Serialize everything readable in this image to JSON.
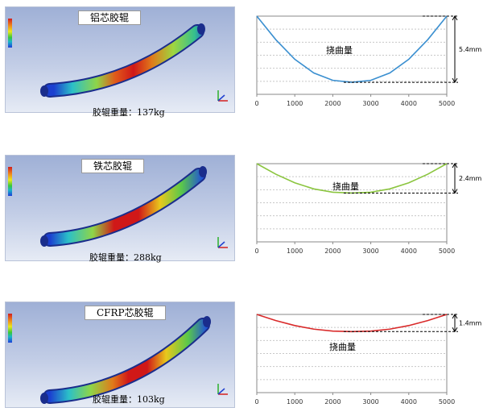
{
  "panels": [
    {
      "material_title": "铝芯胶辊",
      "weight_label": "胶辊重量：137kg"
    },
    {
      "material_title": "铁芯胶辊",
      "weight_label": "胶辊重量：288kg"
    },
    {
      "material_title": "CFRP芯胶辊",
      "weight_label": "胶辊重量：103kg"
    }
  ],
  "chart_data": [
    {
      "type": "line",
      "title": "",
      "x": [
        0,
        500,
        1000,
        1500,
        2000,
        2500,
        3000,
        3500,
        4000,
        4500,
        5000
      ],
      "xticks": [
        0,
        1000,
        2000,
        3000,
        4000,
        5000
      ],
      "xlim": [
        0,
        5000
      ],
      "series": [
        {
          "values": [
            0,
            1.92,
            3.52,
            4.64,
            5.24,
            5.4,
            5.24,
            4.64,
            3.52,
            1.92,
            0
          ],
          "color": "#3a8fd0"
        }
      ],
      "annotation": "挠曲量",
      "dimension_label": "5.4mm",
      "grid": true
    },
    {
      "type": "line",
      "title": "",
      "x": [
        0,
        500,
        1000,
        1500,
        2000,
        2500,
        3000,
        3500,
        4000,
        4500,
        5000
      ],
      "xticks": [
        0,
        1000,
        2000,
        3000,
        4000,
        5000
      ],
      "xlim": [
        0,
        5000
      ],
      "series": [
        {
          "values": [
            0,
            0.86,
            1.56,
            2.06,
            2.33,
            2.4,
            2.33,
            2.06,
            1.56,
            0.86,
            0
          ],
          "color": "#8bc53f"
        }
      ],
      "annotation": "挠曲量",
      "dimension_label": "2.4mm",
      "grid": true
    },
    {
      "type": "line",
      "title": "",
      "x": [
        0,
        500,
        1000,
        1500,
        2000,
        2500,
        3000,
        3500,
        4000,
        4500,
        5000
      ],
      "xticks": [
        0,
        1000,
        2000,
        3000,
        4000,
        5000
      ],
      "xlim": [
        0,
        5000
      ],
      "series": [
        {
          "values": [
            0,
            0.5,
            0.91,
            1.2,
            1.36,
            1.4,
            1.36,
            1.2,
            0.91,
            0.5,
            0
          ],
          "color": "#d92a2a"
        }
      ],
      "annotation": "挠曲量",
      "dimension_label": "1.4mm",
      "grid": true
    }
  ]
}
